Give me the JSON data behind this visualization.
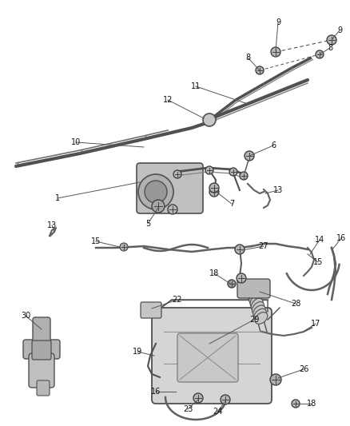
{
  "bg_color": "#ffffff",
  "line_color": "#404040",
  "label_color": "#222222",
  "figsize": [
    4.38,
    5.33
  ],
  "dpi": 100,
  "component_color": "#c8c8c8",
  "dark_color": "#505050",
  "bolt_face": "#b0b0b0",
  "hose_color": "#606060"
}
